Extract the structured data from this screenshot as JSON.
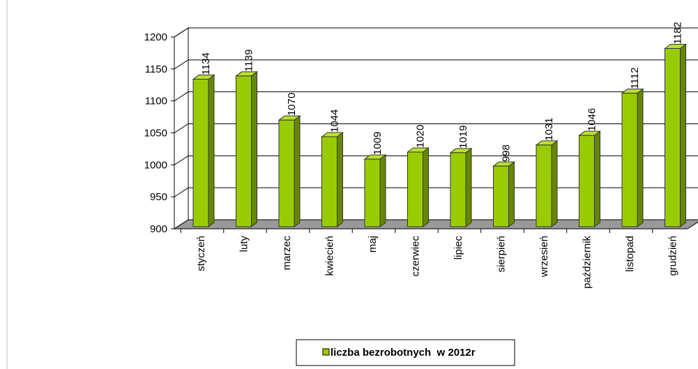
{
  "chart_data": {
    "type": "bar",
    "categories": [
      "styczeń",
      "luty",
      "marzec",
      "kwiecień",
      "maj",
      "czerwiec",
      "lipiec",
      "sierpień",
      "wrzesień",
      "październik",
      "listopad",
      "grudzień"
    ],
    "series": [
      {
        "name": "liczba bezrobotnych  w 2012r",
        "color": "#99cc00",
        "values": [
          1134,
          1139,
          1070,
          1044,
          1009,
          1020,
          1019,
          998,
          1031,
          1046,
          1112,
          1182
        ]
      }
    ],
    "ylim": [
      900,
      1200
    ],
    "yticks": [
      900,
      950,
      1000,
      1050,
      1100,
      1150,
      1200
    ],
    "grid": true,
    "legend": "bottom"
  }
}
